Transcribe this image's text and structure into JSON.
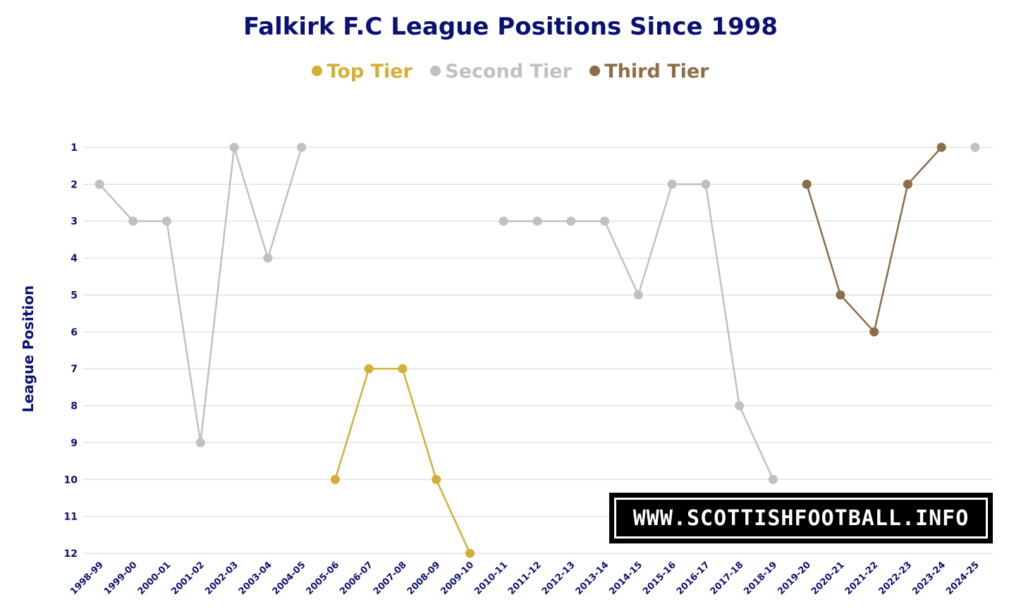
{
  "chart_data": {
    "type": "line",
    "title": "Falkirk F.C League Positions Since 1998",
    "ylabel": "League Position",
    "xlabel": "",
    "y_axis_inverted": true,
    "ylim": [
      1,
      12
    ],
    "yticks": [
      "1",
      "2",
      "3",
      "4",
      "5",
      "6",
      "7",
      "8",
      "9",
      "10",
      "11",
      "12"
    ],
    "grid": "horizontal",
    "legend_position": "top-center",
    "categories": [
      "1998-99",
      "1999-00",
      "2000-01",
      "2001-02",
      "2002-03",
      "2003-04",
      "2004-05",
      "2005-06",
      "2006-07",
      "2007-08",
      "2008-09",
      "2009-10",
      "2010-11",
      "2011-12",
      "2012-13",
      "2013-14",
      "2014-15",
      "2015-16",
      "2016-17",
      "2017-18",
      "2018-19",
      "2019-20",
      "2020-21",
      "2021-22",
      "2022-23",
      "2023-24",
      "2024-25"
    ],
    "series": [
      {
        "name": "Top Tier",
        "color": "#d4af37",
        "values": [
          null,
          null,
          null,
          null,
          null,
          null,
          null,
          10,
          7,
          7,
          10,
          12,
          null,
          null,
          null,
          null,
          null,
          null,
          null,
          null,
          null,
          null,
          null,
          null,
          null,
          null,
          null
        ]
      },
      {
        "name": "Second Tier",
        "color": "#c0c0c0",
        "values": [
          2,
          3,
          3,
          9,
          1,
          4,
          1,
          null,
          null,
          null,
          null,
          null,
          3,
          3,
          3,
          3,
          5,
          2,
          2,
          8,
          10,
          null,
          null,
          null,
          null,
          null,
          1
        ]
      },
      {
        "name": "Third Tier",
        "color": "#8c6d46",
        "values": [
          null,
          null,
          null,
          null,
          null,
          null,
          null,
          null,
          null,
          null,
          null,
          null,
          null,
          null,
          null,
          null,
          null,
          null,
          null,
          null,
          null,
          2,
          5,
          6,
          2,
          1,
          null
        ]
      }
    ]
  },
  "watermark": {
    "text": "WWW.SCOTTISHFOOTBALL.INFO"
  }
}
